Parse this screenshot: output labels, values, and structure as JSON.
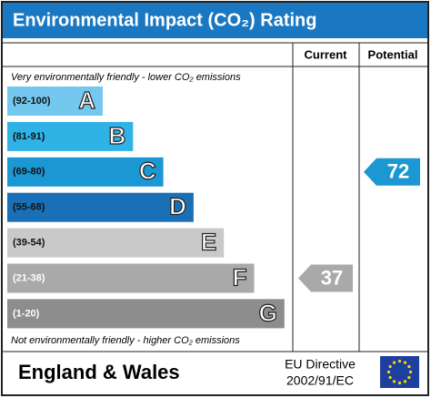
{
  "chart_data": {
    "type": "rating",
    "title": "Environmental Impact (CO₂) Rating",
    "columns": [
      "Current",
      "Potential"
    ],
    "top_note": "Very environmentally friendly - lower CO₂ emissions",
    "bottom_note": "Not environmentally friendly - higher CO₂ emissions",
    "bands": [
      {
        "label": "(92-100)",
        "letter": "A",
        "color": "#74c7ee"
      },
      {
        "label": "(81-91)",
        "letter": "B",
        "color": "#2fb3e6"
      },
      {
        "label": "(69-80)",
        "letter": "C",
        "color": "#1b98d4"
      },
      {
        "label": "(55-68)",
        "letter": "D",
        "color": "#1a70b6"
      },
      {
        "label": "(39-54)",
        "letter": "E",
        "color": "#c9c9c9"
      },
      {
        "label": "(21-38)",
        "letter": "F",
        "color": "#a9a9a9"
      },
      {
        "label": "(1-20)",
        "letter": "G",
        "color": "#8d8d8d"
      }
    ],
    "current": 37,
    "potential": 72,
    "region": "England & Wales",
    "directive": [
      "EU Directive",
      "2002/91/EC"
    ],
    "title_color": "#1a78c2"
  }
}
